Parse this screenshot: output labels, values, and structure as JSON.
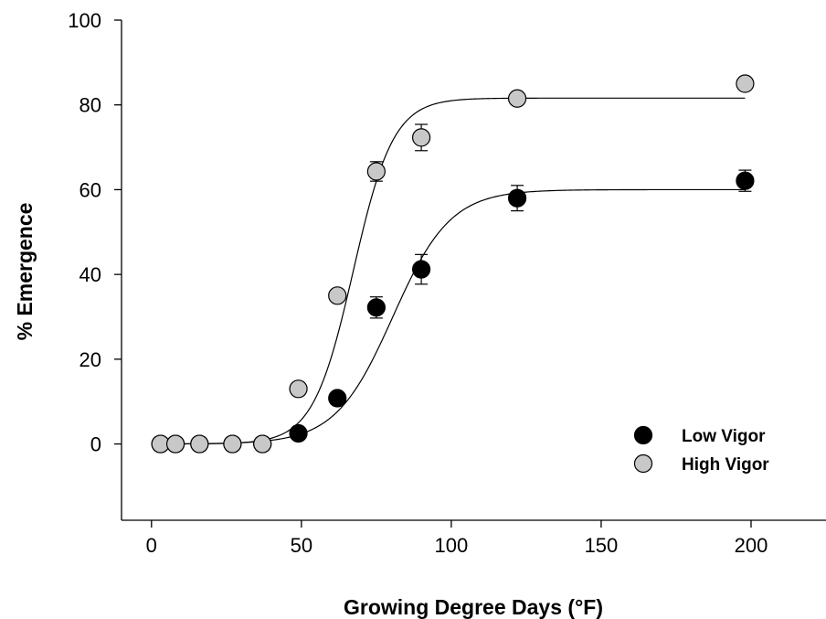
{
  "chart_data": {
    "type": "scatter",
    "title": "",
    "xlabel": "Growing Degree Days (°F)",
    "ylabel": "% Emergence",
    "xlim": [
      -10,
      225
    ],
    "ylim": [
      -18,
      100
    ],
    "x_ticks": [
      0,
      50,
      100,
      150,
      200
    ],
    "y_ticks": [
      0,
      20,
      40,
      60,
      80,
      100
    ],
    "grid": false,
    "legend_position": "bottom-right",
    "series": [
      {
        "name": "Low Vigor",
        "color": "#000000",
        "x": [
          3,
          8,
          16,
          27,
          37,
          49,
          62,
          75,
          90,
          122,
          198
        ],
        "y": [
          0,
          0,
          0,
          0,
          0,
          2.5,
          10.8,
          32.2,
          41.2,
          58.0,
          62.1
        ],
        "error": [
          0,
          0,
          0,
          0,
          0,
          0.5,
          0.5,
          2.5,
          3.5,
          3.0,
          2.5
        ],
        "fit": {
          "model": "sigmoid",
          "a": 60.0,
          "x0": 80.5,
          "b": 9.6
        }
      },
      {
        "name": "High Vigor",
        "color": "#c8c8c8",
        "x": [
          3,
          8,
          16,
          27,
          37,
          49,
          62,
          75,
          90,
          122,
          198
        ],
        "y": [
          0,
          0,
          0,
          0,
          0,
          13.0,
          35.0,
          64.3,
          72.3,
          81.5,
          85.0
        ],
        "error": [
          0,
          0,
          0,
          0,
          0,
          0.5,
          0.5,
          2.3,
          3.1,
          0.5,
          0.5
        ],
        "fit": {
          "model": "sigmoid",
          "a": 81.6,
          "x0": 67.3,
          "b": 6.7
        }
      }
    ]
  }
}
